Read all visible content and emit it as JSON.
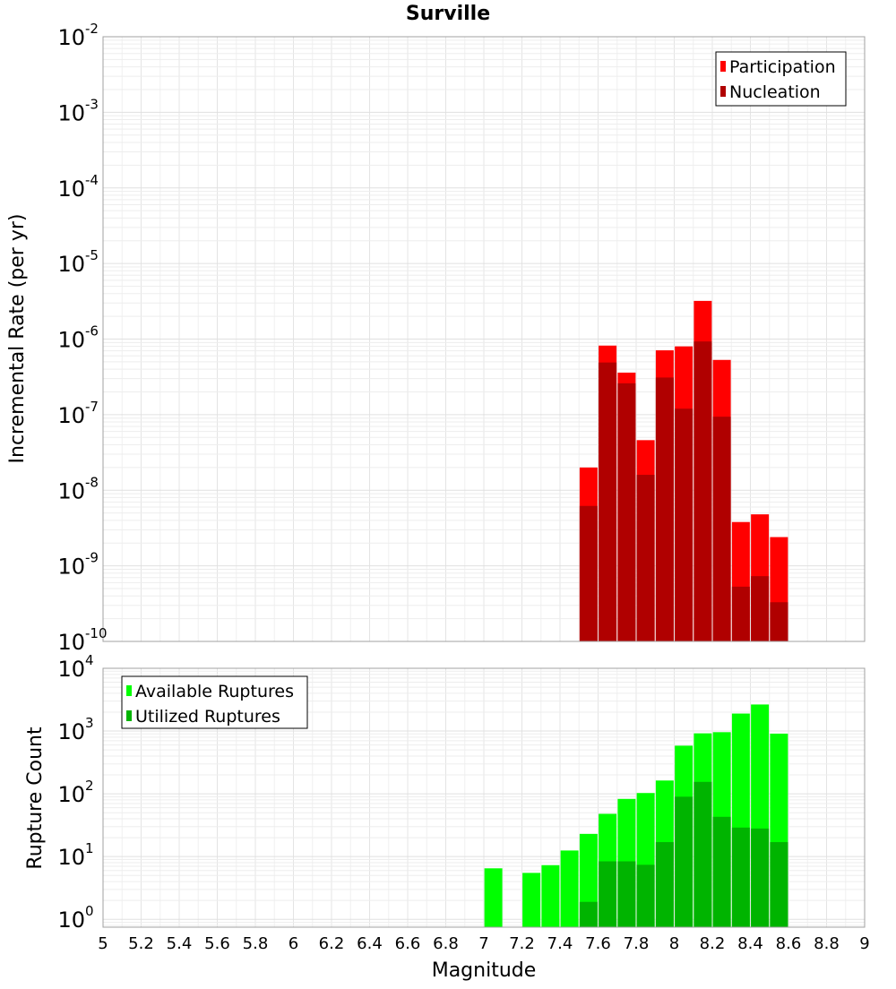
{
  "title": "Surville",
  "colors": {
    "participation": "#ff0000",
    "nucleation": "#b00000",
    "available": "#00ff00",
    "utilized": "#00b400",
    "grid": "#e8e8e8",
    "frame": "#a0a0a0"
  },
  "chart_data": [
    {
      "type": "bar",
      "title": "Surville",
      "ylabel": "Incremental Rate (per yr)",
      "xlabel": "",
      "yscale": "log",
      "xlim": [
        5,
        9
      ],
      "ylim": [
        1e-10,
        0.01
      ],
      "grid": true,
      "legend_position": "top-right",
      "ytick_labels": [
        {
          "base": "10",
          "exp": "-10",
          "value": 1e-10
        },
        {
          "base": "10",
          "exp": "-9",
          "value": 1e-09
        },
        {
          "base": "10",
          "exp": "-8",
          "value": 1e-08
        },
        {
          "base": "10",
          "exp": "-7",
          "value": 1e-07
        },
        {
          "base": "10",
          "exp": "-6",
          "value": 1e-06
        },
        {
          "base": "10",
          "exp": "-5",
          "value": 1e-05
        },
        {
          "base": "10",
          "exp": "-4",
          "value": 0.0001
        },
        {
          "base": "10",
          "exp": "-3",
          "value": 0.001
        },
        {
          "base": "10",
          "exp": "-2",
          "value": 0.01
        }
      ],
      "x": [
        7.55,
        7.65,
        7.75,
        7.85,
        7.95,
        8.05,
        8.15,
        8.25,
        8.35,
        8.45,
        8.55
      ],
      "series": [
        {
          "name": "Participation",
          "color": "#ff0000",
          "values": [
            2e-08,
            8.2e-07,
            3.6e-07,
            4.6e-08,
            7.1e-07,
            8e-07,
            3.2e-06,
            5.3e-07,
            3.8e-09,
            4.8e-09,
            2.4e-09
          ]
        },
        {
          "name": "Nucleation",
          "color": "#b00000",
          "values": [
            6.2e-09,
            4.9e-07,
            2.6e-07,
            1.6e-08,
            3.1e-07,
            1.2e-07,
            9.3e-07,
            9.4e-08,
            5.3e-10,
            7.3e-10,
            3.3e-10
          ]
        }
      ]
    },
    {
      "type": "bar",
      "title": "",
      "ylabel": "Rupture Count",
      "xlabel": "Magnitude",
      "yscale": "log",
      "xlim": [
        5,
        9
      ],
      "ylim": [
        0.75,
        10000
      ],
      "grid": true,
      "legend_position": "top-left",
      "ytick_labels": [
        {
          "base": "10",
          "exp": "0",
          "value": 1
        },
        {
          "base": "10",
          "exp": "1",
          "value": 10
        },
        {
          "base": "10",
          "exp": "2",
          "value": 100
        },
        {
          "base": "10",
          "exp": "3",
          "value": 1000
        },
        {
          "base": "10",
          "exp": "4",
          "value": 10000
        }
      ],
      "xtick_labels": [
        "5",
        "5.2",
        "5.4",
        "5.6",
        "5.8",
        "6",
        "6.2",
        "6.4",
        "6.6",
        "6.8",
        "7",
        "7.2",
        "7.4",
        "7.6",
        "7.8",
        "8",
        "8.2",
        "8.4",
        "8.6",
        "8.8",
        "9"
      ],
      "x": [
        7.05,
        7.25,
        7.35,
        7.45,
        7.55,
        7.65,
        7.75,
        7.85,
        7.95,
        8.05,
        8.15,
        8.25,
        8.35,
        8.45,
        8.55
      ],
      "series": [
        {
          "name": "Available Ruptures",
          "color": "#00ff00",
          "values": [
            6.5,
            5.5,
            7.3,
            12.5,
            23,
            48,
            83,
            103,
            163,
            585,
            920,
            960,
            1900,
            2650,
            910
          ]
        },
        {
          "name": "Utilized Ruptures",
          "color": "#00b400",
          "values": [
            0,
            0,
            0,
            0,
            1.9,
            8.4,
            8.4,
            7.4,
            17,
            90,
            155,
            43,
            29,
            28,
            17
          ]
        }
      ]
    }
  ]
}
